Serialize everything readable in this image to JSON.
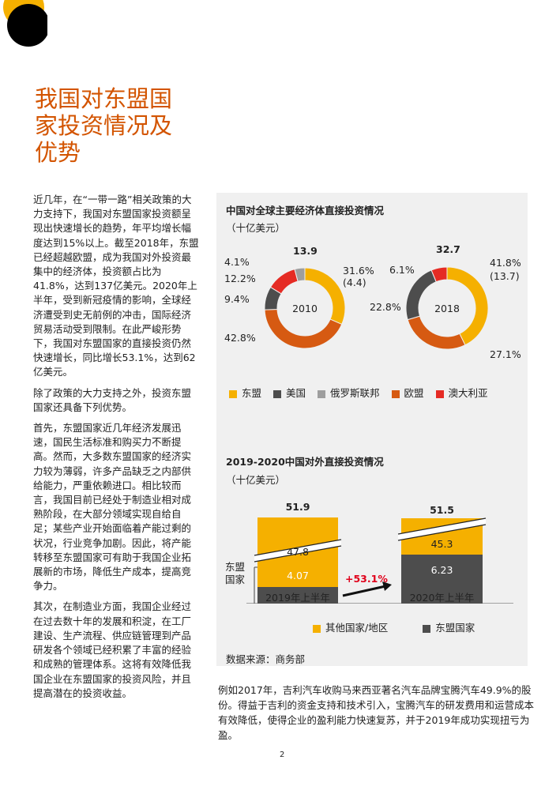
{
  "title_lines": [
    "我国对东盟国",
    "家投资情况及",
    "优势"
  ],
  "left_paragraphs": [
    "近几年，在“一带一路”相关政策的大力支持下，我国对东盟国家投资额呈现出快速增长的趋势，年平均增长幅度达到15%以上。截至2018年，东盟已经超越欧盟，成为我国对外投资最集中的经济体，投资额占比为41.8%，达到137亿美元。2020年上半年，受到新冠疫情的影响，全球经济遭受到史无前例的冲击，国际经济贸易活动受到限制。在此严峻形势下，我国对东盟国家的直接投资仍然快速增长，同比增长53.1%，达到62亿美元。",
    "除了政策的大力支持之外，投资东盟国家还具备下列优势。",
    "首先，东盟国家近几年经济发展迅速，国民生活标准和购买力不断提高。然而，大多数东盟国家的经济实力较为薄弱，许多产品缺乏之内部供给能力，严重依赖进口。相比较而言，我国目前已经处于制造业相对成熟阶段，在大部分领域实现自给自足；某些产业开始面临着产能过剩的状况，行业竞争加剧。因此，将产能转移至东盟国家可有助于我国企业拓展新的市场，降低生产成本，提高竞争力。",
    "其次，在制造业方面，我国企业经过在过去数十年的发展和积淀，在工厂建设、生产流程、供应链管理到产品研发各个领域已经积累了丰富的经验和成熟的管理体系。这将有效降低我国企业在东盟国家的投资风险，并且提高潜在的投资收益。"
  ],
  "bottom_paragraph": "例如2017年，吉利汽车收购马来西亚著名汽车品牌宝腾汽车49.9%的股份。得益于吉利的资金支持和技术引入，宝腾汽车的研发费用和运营成本有效降低，使得企业的盈利能力快速复苏，并于2019年成功实现扭亏为盈。",
  "page_number": "2",
  "colors": {
    "asean": "#f5b000",
    "us": "#4d4d4d",
    "russia": "#9e9e9e",
    "eu": "#d65a12",
    "australia": "#e52b24",
    "accent": "#d35400",
    "growth": "#e0001a"
  },
  "chart_data": [
    {
      "type": "pie",
      "title": "中国对全球主要经济体直接投资情况",
      "unit": "（十亿美元）",
      "legend": [
        {
          "name": "东盟",
          "color": "#f5b000"
        },
        {
          "name": "美国",
          "color": "#4d4d4d"
        },
        {
          "name": "俄罗斯联邦",
          "color": "#9e9e9e"
        },
        {
          "name": "欧盟",
          "color": "#d65a12"
        },
        {
          "name": "澳大利亚",
          "color": "#e52b24"
        }
      ],
      "donuts": [
        {
          "label": "2010",
          "total": "13.9",
          "slices": [
            {
              "name": "东盟",
              "value": 31.6,
              "label": "31.6%",
              "sub": "(4.4)"
            },
            {
              "name": "欧盟",
              "value": 42.8,
              "label": "42.8%"
            },
            {
              "name": "美国",
              "value": 9.4,
              "label": "9.4%"
            },
            {
              "name": "澳大利亚",
              "value": 12.2,
              "label": "12.2%"
            },
            {
              "name": "俄罗斯联邦",
              "value": 4.1,
              "label": "4.1%"
            }
          ]
        },
        {
          "label": "2018",
          "total": "32.7",
          "slices": [
            {
              "name": "东盟",
              "value": 41.8,
              "label": "41.8%",
              "sub": "(13.7)"
            },
            {
              "name": "欧盟",
              "value": 27.1,
              "label": "27.1%"
            },
            {
              "name": "美国",
              "value": 22.8,
              "label": "22.8%"
            },
            {
              "name": "澳大利亚",
              "value": 6.1,
              "label": "6.1%"
            }
          ]
        }
      ]
    },
    {
      "type": "bar",
      "title": "2019-2020中国对外直接投资情况",
      "unit": "（十亿美元）",
      "categories": [
        "2019年上半年",
        "2020年上半年"
      ],
      "totals": [
        "51.9",
        "51.5"
      ],
      "series": [
        {
          "name": "东盟国家",
          "values": [
            4.07,
            6.23
          ],
          "labels": [
            "4.07",
            "6.23"
          ],
          "color": "#4d4d4d"
        },
        {
          "name": "其他国家/地区",
          "values": [
            47.8,
            45.3
          ],
          "labels": [
            "47.8",
            "45.3"
          ],
          "color": "#f5b000"
        }
      ],
      "bracket_label_lines": [
        "东盟",
        "国家"
      ],
      "growth_label": "+53.1%",
      "source": "数据来源：商务部"
    }
  ]
}
